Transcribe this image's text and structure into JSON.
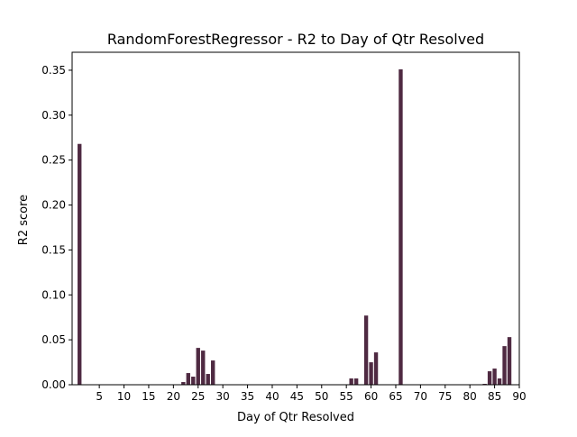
{
  "chart_data": {
    "type": "bar",
    "title": "RandomForestRegressor - R2 to Day of Qtr Resolved",
    "xlabel": "Day of Qtr Resolved",
    "ylabel": "R2 score",
    "xlim": [
      -0.5,
      90
    ],
    "ylim": [
      0,
      0.37
    ],
    "grid": false,
    "legend": "none",
    "bar_color": "#4f2a42",
    "x_ticks": [
      5,
      10,
      15,
      20,
      25,
      30,
      35,
      40,
      45,
      50,
      55,
      60,
      65,
      70,
      75,
      80,
      85,
      90
    ],
    "y_ticks": [
      0.0,
      0.05,
      0.1,
      0.15,
      0.2,
      0.25,
      0.3,
      0.35
    ],
    "x_tick_labels": [
      "5",
      "10",
      "15",
      "20",
      "25",
      "30",
      "35",
      "40",
      "45",
      "50",
      "55",
      "60",
      "65",
      "70",
      "75",
      "80",
      "85",
      "90"
    ],
    "y_tick_labels": [
      "0.00",
      "0.05",
      "0.10",
      "0.15",
      "0.20",
      "0.25",
      "0.30",
      "0.35"
    ],
    "bar_width": 0.8,
    "x": [
      1,
      22,
      23,
      24,
      25,
      26,
      27,
      28,
      56,
      57,
      59,
      60,
      61,
      66,
      83,
      84,
      85,
      86,
      87,
      88
    ],
    "values": [
      0.268,
      0.003,
      0.013,
      0.009,
      0.041,
      0.038,
      0.012,
      0.027,
      0.007,
      0.007,
      0.077,
      0.025,
      0.036,
      0.351,
      0.001,
      0.015,
      0.018,
      0.007,
      0.043,
      0.053
    ]
  }
}
